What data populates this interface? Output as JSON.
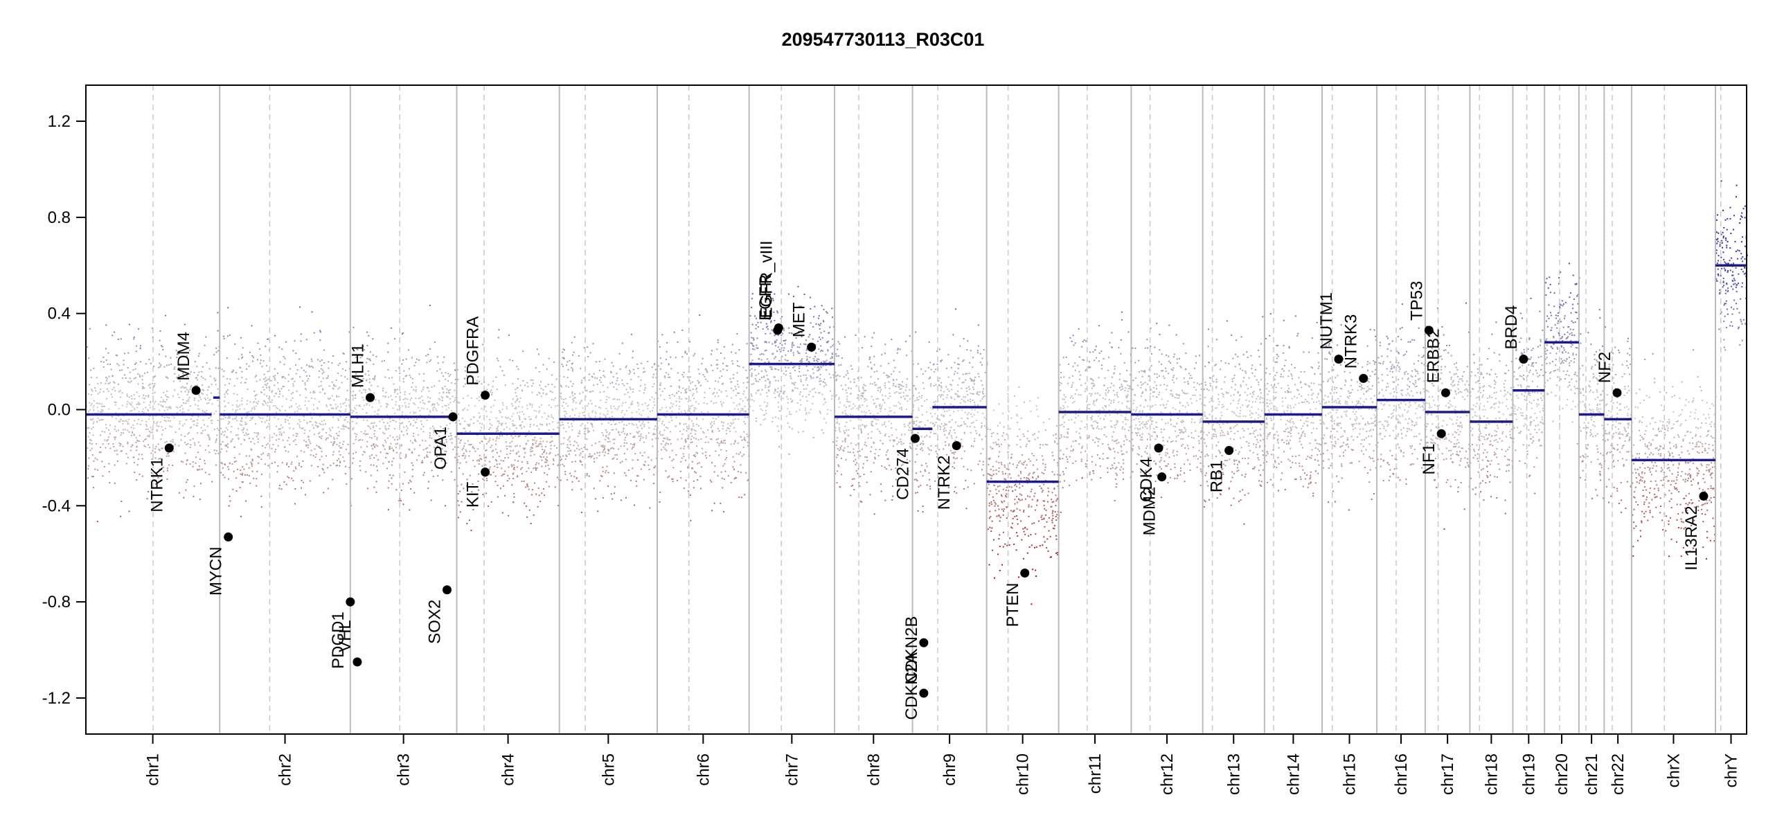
{
  "chart_data": {
    "type": "scatter",
    "title": "209547730113_R03C01",
    "xlabel": "",
    "ylabel": "",
    "ylim": [
      -1.35,
      1.35
    ],
    "y_ticks": [
      -1.2,
      -0.8,
      -0.4,
      0.0,
      0.4,
      0.8,
      1.2
    ],
    "y_tick_labels": [
      "-1.2",
      "-0.8",
      "-0.4",
      "0.0",
      "0.4",
      "0.8",
      "1.2"
    ],
    "grid": false,
    "colors": {
      "gain": "#2b2f9e",
      "loss": "#a01010",
      "neutral": "#b8b8b8",
      "segment": "#1a1a8c",
      "gene_point": "#000000",
      "divider": "#bbbbbb"
    },
    "chromosomes": [
      {
        "name": "chr1",
        "start": 0,
        "end": 249,
        "centromere": 125
      },
      {
        "name": "chr2",
        "start": 249,
        "end": 492,
        "centromere": 342
      },
      {
        "name": "chr3",
        "start": 492,
        "end": 690,
        "centromere": 584
      },
      {
        "name": "chr4",
        "start": 690,
        "end": 881,
        "centromere": 741
      },
      {
        "name": "chr5",
        "start": 881,
        "end": 1063,
        "centromere": 929
      },
      {
        "name": "chr6",
        "start": 1063,
        "end": 1234,
        "centromere": 1122
      },
      {
        "name": "chr7",
        "start": 1234,
        "end": 1393,
        "centromere": 1294
      },
      {
        "name": "chr8",
        "start": 1393,
        "end": 1538,
        "centromere": 1438
      },
      {
        "name": "chr9",
        "start": 1538,
        "end": 1676,
        "centromere": 1585
      },
      {
        "name": "chr10",
        "start": 1676,
        "end": 1810,
        "centromere": 1716
      },
      {
        "name": "chr11",
        "start": 1810,
        "end": 1945,
        "centromere": 1863
      },
      {
        "name": "chr12",
        "start": 1945,
        "end": 2078,
        "centromere": 1980
      },
      {
        "name": "chr13",
        "start": 2078,
        "end": 2193,
        "centromere": 2096
      },
      {
        "name": "chr14",
        "start": 2193,
        "end": 2300,
        "centromere": 2210
      },
      {
        "name": "chr15",
        "start": 2300,
        "end": 2402,
        "centromere": 2319
      },
      {
        "name": "chr16",
        "start": 2402,
        "end": 2492,
        "centromere": 2438
      },
      {
        "name": "chr17",
        "start": 2492,
        "end": 2575,
        "centromere": 2516
      },
      {
        "name": "chr18",
        "start": 2575,
        "end": 2655,
        "centromere": 2593
      },
      {
        "name": "chr19",
        "start": 2655,
        "end": 2714,
        "centromere": 2681
      },
      {
        "name": "chr20",
        "start": 2714,
        "end": 2778,
        "centromere": 2742
      },
      {
        "name": "chr21",
        "start": 2778,
        "end": 2825,
        "centromere": 2791
      },
      {
        "name": "chr22",
        "start": 2825,
        "end": 2876,
        "centromere": 2840
      },
      {
        "name": "chrX",
        "start": 2876,
        "end": 3032,
        "centromere": 2937
      },
      {
        "name": "chrY",
        "start": 3032,
        "end": 3090,
        "centromere": 3042
      }
    ],
    "segments": [
      {
        "x": [
          0,
          234
        ],
        "y": -0.02
      },
      {
        "x": [
          237,
          249
        ],
        "y": 0.05
      },
      {
        "x": [
          249,
          492
        ],
        "y": -0.02
      },
      {
        "x": [
          492,
          690
        ],
        "y": -0.03
      },
      {
        "x": [
          690,
          881
        ],
        "y": -0.1
      },
      {
        "x": [
          881,
          1063
        ],
        "y": -0.04
      },
      {
        "x": [
          1063,
          1234
        ],
        "y": -0.02
      },
      {
        "x": [
          1234,
          1393
        ],
        "y": 0.19
      },
      {
        "x": [
          1393,
          1538
        ],
        "y": -0.03
      },
      {
        "x": [
          1538,
          1575
        ],
        "y": -0.08
      },
      {
        "x": [
          1575,
          1676
        ],
        "y": 0.01
      },
      {
        "x": [
          1676,
          1810
        ],
        "y": -0.3
      },
      {
        "x": [
          1810,
          1945
        ],
        "y": -0.01
      },
      {
        "x": [
          1945,
          2078
        ],
        "y": -0.02
      },
      {
        "x": [
          2078,
          2193
        ],
        "y": -0.05
      },
      {
        "x": [
          2193,
          2300
        ],
        "y": -0.02
      },
      {
        "x": [
          2300,
          2402
        ],
        "y": 0.01
      },
      {
        "x": [
          2402,
          2492
        ],
        "y": 0.04
      },
      {
        "x": [
          2492,
          2575
        ],
        "y": -0.01
      },
      {
        "x": [
          2575,
          2655
        ],
        "y": -0.05
      },
      {
        "x": [
          2655,
          2714
        ],
        "y": 0.08
      },
      {
        "x": [
          2714,
          2778
        ],
        "y": 0.28
      },
      {
        "x": [
          2778,
          2825
        ],
        "y": -0.02
      },
      {
        "x": [
          2825,
          2876
        ],
        "y": -0.04
      },
      {
        "x": [
          2876,
          3032
        ],
        "y": -0.21
      },
      {
        "x": [
          3032,
          3090
        ],
        "y": 0.6
      }
    ],
    "genes": [
      {
        "name": "NTRK1",
        "x": 155,
        "y": -0.16,
        "label_side": "below"
      },
      {
        "name": "MDM4",
        "x": 205,
        "y": 0.08,
        "label_side": "above"
      },
      {
        "name": "MYCN",
        "x": 265,
        "y": -0.53,
        "label_side": "below"
      },
      {
        "name": "PDGD1",
        "x": 492,
        "y": -0.8,
        "label_side": "below"
      },
      {
        "name": "VHL",
        "x": 505,
        "y": -1.05,
        "label_side": "above"
      },
      {
        "name": "MLH1",
        "x": 529,
        "y": 0.05,
        "label_side": "above"
      },
      {
        "name": "SOX2",
        "x": 672,
        "y": -0.75,
        "label_side": "below"
      },
      {
        "name": "OPA1",
        "x": 683,
        "y": -0.03,
        "label_side": "below"
      },
      {
        "name": "PDGFRA",
        "x": 743,
        "y": 0.06,
        "label_side": "above"
      },
      {
        "name": "KIT",
        "x": 743,
        "y": -0.26,
        "label_side": "below"
      },
      {
        "name": "EGFR",
        "x": 1287,
        "y": 0.33,
        "label_side": "above"
      },
      {
        "name": "EGFR_vIII",
        "x": 1289,
        "y": 0.34,
        "label_side": "above"
      },
      {
        "name": "MET",
        "x": 1350,
        "y": 0.26,
        "label_side": "above"
      },
      {
        "name": "CD274",
        "x": 1543,
        "y": -0.12,
        "label_side": "below"
      },
      {
        "name": "CDKN2A",
        "x": 1559,
        "y": -0.97,
        "label_side": "below"
      },
      {
        "name": "CDKN2B",
        "x": 1559,
        "y": -1.18,
        "label_side": "above"
      },
      {
        "name": "NTRK2",
        "x": 1620,
        "y": -0.15,
        "label_side": "below"
      },
      {
        "name": "PTEN",
        "x": 1747,
        "y": -0.68,
        "label_side": "below"
      },
      {
        "name": "CDK4",
        "x": 1996,
        "y": -0.16,
        "label_side": "below"
      },
      {
        "name": "MDM2",
        "x": 2002,
        "y": -0.28,
        "label_side": "below"
      },
      {
        "name": "RB1",
        "x": 2127,
        "y": -0.17,
        "label_side": "below"
      },
      {
        "name": "NUTM1",
        "x": 2331,
        "y": 0.21,
        "label_side": "above"
      },
      {
        "name": "NTRK3",
        "x": 2377,
        "y": 0.13,
        "label_side": "above"
      },
      {
        "name": "TP53",
        "x": 2499,
        "y": 0.33,
        "label_side": "above"
      },
      {
        "name": "ERBB2",
        "x": 2530,
        "y": 0.07,
        "label_side": "above"
      },
      {
        "name": "NF1",
        "x": 2522,
        "y": -0.1,
        "label_side": "below"
      },
      {
        "name": "BRD4",
        "x": 2675,
        "y": 0.21,
        "label_side": "above"
      },
      {
        "name": "NF2",
        "x": 2849,
        "y": 0.07,
        "label_side": "above"
      },
      {
        "name": "IL13RA2",
        "x": 3010,
        "y": -0.36,
        "label_side": "below"
      }
    ]
  }
}
